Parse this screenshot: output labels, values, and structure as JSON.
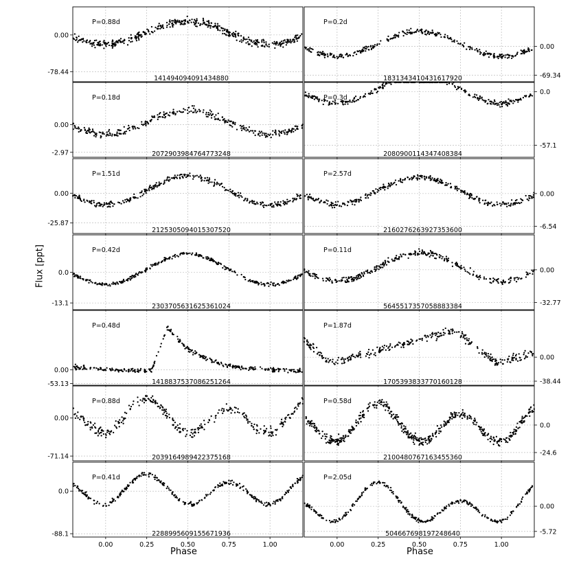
{
  "figure": {
    "ylabel": "Flux [ppt]",
    "xlabel": "Phase",
    "xticks": [
      "0.00",
      "0.25",
      "0.50",
      "0.75",
      "1.00"
    ]
  },
  "chart_data": [
    {
      "type": "scatter",
      "period_label": "P=0.88d",
      "id_label": "141494094091434880",
      "ytick_labels": [
        "0.00",
        "-78.44"
      ],
      "ylim": [
        -100,
        60
      ],
      "shape": "sine",
      "amp": 50,
      "peak": 0.5,
      "noise": 10
    },
    {
      "type": "scatter",
      "period_label": "P=0.2d",
      "id_label": "1831343410431617920",
      "ytick_labels": [
        "0.00",
        "-69.34"
      ],
      "ylim": [
        -85,
        95
      ],
      "shape": "sine",
      "amp": 60,
      "peak": 0.5,
      "noise": 8
    },
    {
      "type": "scatter",
      "period_label": "P=0.18d",
      "id_label": "2072903984764773248",
      "ytick_labels": [
        "0.00",
        "-2.97"
      ],
      "ylim": [
        -3.5,
        4.5
      ],
      "shape": "sine",
      "amp": 2.5,
      "peak": 0.5,
      "noise": 0.5
    },
    {
      "type": "scatter",
      "period_label": "P=0.3d",
      "id_label": "2080900114347408384",
      "ytick_labels": [
        "0.0",
        "-57.1"
      ],
      "ylim": [
        -70,
        10
      ],
      "shape": "sine",
      "amp": 30,
      "peak": 0.5,
      "noise": 4
    },
    {
      "type": "scatter",
      "period_label": "P=1.51d",
      "id_label": "2125305094015307520",
      "ytick_labels": [
        "0.00",
        "-25.87"
      ],
      "ylim": [
        -35,
        30
      ],
      "shape": "sine",
      "amp": 25,
      "peak": 0.5,
      "noise": 3
    },
    {
      "type": "scatter",
      "period_label": "P=2.57d",
      "id_label": "2160276263927353600",
      "ytick_labels": [
        "0.00",
        "-6.54"
      ],
      "ylim": [
        -8,
        7
      ],
      "shape": "sine",
      "amp": 5.5,
      "peak": 0.5,
      "noise": 0.7
    },
    {
      "type": "scatter",
      "period_label": "P=0.42d",
      "id_label": "2303705631625361024",
      "ytick_labels": [
        "0.0",
        "-13.1"
      ],
      "ylim": [
        -16,
        16
      ],
      "shape": "sine",
      "amp": 13,
      "peak": 0.5,
      "noise": 1
    },
    {
      "type": "scatter",
      "period_label": "P=0.11d",
      "id_label": "5645517357058883384",
      "ytick_labels": [
        "0.00",
        "-32.77"
      ],
      "ylim": [
        -40,
        35
      ],
      "shape": "sine",
      "amp": 28,
      "peak": 0.5,
      "noise": 4
    },
    {
      "type": "scatter",
      "period_label": "P=0.48d",
      "id_label": "1418837537086251264",
      "ytick_labels": [
        "0.00",
        "-53.13"
      ],
      "ylim": [
        -60,
        230
      ],
      "shape": "rrlyr",
      "amp": 200,
      "peak": 0.38,
      "noise": 10
    },
    {
      "type": "scatter",
      "period_label": "P=1.87d",
      "id_label": "1705393833770160128",
      "ytick_labels": [
        "0.00",
        "-38.44"
      ],
      "ylim": [
        -45,
        75
      ],
      "shape": "sawtooth",
      "amp": 60,
      "peak": 0.72,
      "noise": 8
    },
    {
      "type": "scatter",
      "period_label": "P=0.88d",
      "id_label": "2039164989422375168",
      "ytick_labels": [
        "0.00",
        "-71.14"
      ],
      "ylim": [
        -80,
        60
      ],
      "shape": "double",
      "amp": 45,
      "peak": 0.25,
      "noise": 12
    },
    {
      "type": "scatter",
      "period_label": "P=0.58d",
      "id_label": "2100480767163455360",
      "ytick_labels": [
        "0.0",
        "-24.6"
      ],
      "ylim": [
        -32,
        35
      ],
      "shape": "double",
      "amp": 24,
      "peak": 0.25,
      "noise": 5
    },
    {
      "type": "scatter",
      "period_label": "P=0.41d",
      "id_label": "2288995609155671936",
      "ytick_labels": [
        "0.0",
        "-88.1"
      ],
      "ylim": [
        -95,
        60
      ],
      "shape": "double",
      "amp": 45,
      "peak": 0.25,
      "noise": 6
    },
    {
      "type": "scatter",
      "period_label": "P=2.05d",
      "id_label": "504667698197248640",
      "ytick_labels": [
        "0.00",
        "-5.72"
      ],
      "ylim": [
        -7,
        10
      ],
      "shape": "eclipsing",
      "amp": 6,
      "peak": 0.25,
      "noise": 0.5
    }
  ]
}
